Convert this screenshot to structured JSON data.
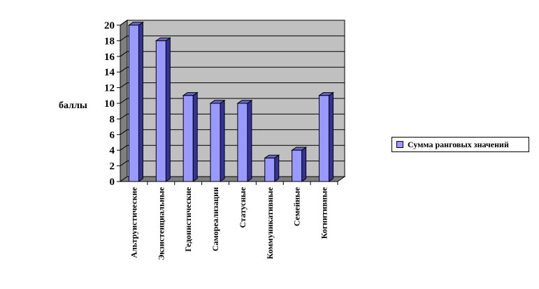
{
  "chart_data": {
    "type": "bar",
    "categories": [
      "Альтруистические",
      "Экзистенциальные",
      "Гедонистические",
      "Самореализации",
      "Статусные",
      "Коммуникативные",
      "Семейные",
      "Когнитивные"
    ],
    "series": [
      {
        "name": "Сумма ранговых значений",
        "values": [
          20,
          18,
          11,
          10,
          10,
          3,
          4,
          11
        ]
      }
    ],
    "ylabel": "баллы",
    "xlabel": "",
    "ylim": [
      0,
      20
    ],
    "yticks": [
      0,
      2,
      4,
      6,
      8,
      10,
      12,
      14,
      16,
      18,
      20
    ],
    "grid": true,
    "legend_position": "right",
    "colors": {
      "bar_front": "#9999ff",
      "bar_side": "#333399",
      "bar_top": "#6666cc",
      "plot_back": "#c0c0c0",
      "plot_floor": "#808080",
      "gridline": "#000000"
    }
  }
}
